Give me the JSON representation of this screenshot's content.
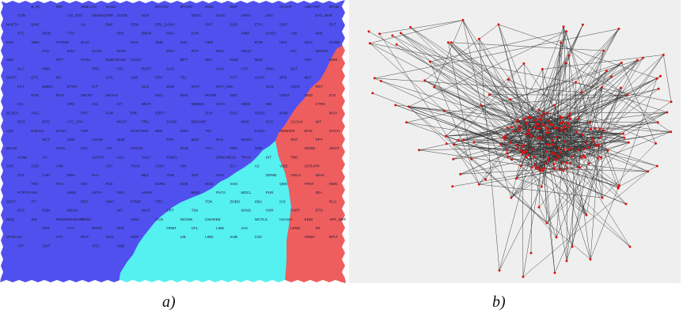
{
  "captions": {
    "a": "a)",
    "b": "b)"
  },
  "colors": {
    "region_blue": "#5050ee",
    "region_cyan": "#55f0f0",
    "region_red": "#ee5e5e",
    "cell_label": "#1a1a33",
    "graph_edge": "#333333",
    "graph_node": "#e01010",
    "graph_bg": "#efefef"
  },
  "som_labels": [
    "B_PL",
    "REF",
    "SWE LTC",
    "SAGE",
    "BITCNY",
    "BTCNY",
    "KEEI",
    "REP",
    "OTSAP",
    "ADK FEP",
    "BTHB",
    "CON",
    "LTC_ETC",
    "MONAGENP",
    "DOGE",
    "EOS",
    "GBTC",
    "SUIG",
    "XMTA",
    "ZKG",
    "ETC_BNP",
    "MAETA",
    "BHIC",
    "UA",
    "BNC",
    "ZEM",
    "ERL_DASH",
    "DNT",
    "SOS",
    "ETH",
    "DGP",
    "EKT",
    "XTC",
    "NEW",
    "TTD",
    "NPA",
    "BDHK",
    "NKS",
    "EVN",
    "XRM",
    "DASH",
    "LSK",
    "PAB",
    "KNC",
    "XMG",
    "STEEM",
    "ELIG",
    "MAS",
    "SNB",
    "SLE",
    "GDD",
    "BTM",
    "NEX",
    "NUO",
    "GAME",
    "FAX",
    "MSC",
    "EVNC",
    "MOM",
    "BIGT",
    "RCT",
    "EDU",
    "HOLD",
    "ICC",
    "WAVES",
    "SDE",
    "PPT",
    "PAGC",
    "BURCBASE",
    "CVGH",
    "BPT",
    "ZEC",
    "RMD",
    "NMS",
    "ANT",
    "SNM",
    "NLC",
    "NMC",
    "ZRX",
    "HTL",
    "RUFF",
    "GAS",
    "SAN",
    "CVC",
    "OMG",
    "BAT",
    "SHIFT",
    "ETC",
    "BS",
    "SYS",
    "SUB",
    "RPX",
    "TEL",
    "TCT",
    "AUTO",
    "BRK",
    "MLT",
    "FCT",
    "MIBEL",
    "DTMT",
    "ICT",
    "SLG",
    "EDN",
    "WTC",
    "DOT_GRL",
    "OCN",
    "LEDC",
    "RGT",
    "EOS",
    "ROS",
    "MICNT",
    "WAVAX",
    "EKO",
    "RMX",
    "POWR",
    "NGC",
    "CENT",
    "DMD",
    "ICN",
    "ICC",
    "XRG",
    "ZCL",
    "ICT",
    "BNAT",
    "BQNNN",
    "DATA",
    "SENC",
    "INK",
    "CTRC",
    "BLOCK",
    "TKG",
    "ERC",
    "FUN",
    "ERL",
    "EBPT",
    "ZCN",
    "EGC",
    "GDVS",
    "BSM",
    "BCH",
    "ZGG",
    "BTG",
    "LTC_CNY",
    "MOAT",
    "TRU",
    "SAND",
    "BOSAMT",
    "MMC",
    "SCC",
    "CLOAK",
    "INT",
    "LQC",
    "EMULS",
    "DASH",
    "CMT",
    "OAKTOKN",
    "BEE",
    "EOO",
    "TIO",
    "CASH",
    "NEBHOS",
    "BYM",
    "DACH",
    "MCT",
    "CDR",
    "LOOM",
    "QUB",
    "RPX",
    "BCD",
    "PLG",
    "MOGC",
    "SNT",
    "PPY",
    "BCHN",
    "CERL",
    "ETC",
    "VTA",
    "STRAN",
    "GNO",
    "TCH",
    "OPH",
    "SNR",
    "NORD",
    "SKGT",
    "AGMI",
    "CV",
    "AUTOC",
    "ADA",
    "SALT",
    "TDMG",
    "ZRBCNDAC",
    "TRAH",
    "IST",
    "TBG",
    "CMT",
    "OSC",
    "ARK",
    "VET",
    "TRAC",
    "COFI",
    "KIN",
    "ZLY",
    "AC",
    "VIBE",
    "SCRAPR",
    "GAT",
    "CHP",
    "NRN",
    "PLU",
    "BEZ",
    "VNB",
    "ZAP",
    "XVG",
    "ORME",
    "ORCA",
    "IMAX",
    "TNC",
    "POA",
    "OGI",
    "FDZ",
    "EDRC",
    "EOB",
    "NCB",
    "GXS",
    "QNK",
    "FRST",
    "MMC",
    "POPTCASH",
    "SWM",
    "ASTH",
    "SGG",
    "AHNE",
    "MOD",
    "PUTA",
    "MDCL",
    "PUR",
    "IDH",
    "SENT",
    "TIT",
    "REF",
    "SMH",
    "STBIP",
    "TRG",
    "TOK",
    "ZNBD",
    "XBA",
    "ICX",
    "RLC",
    "EPS",
    "RDN",
    "MEAN",
    "INT",
    "WIXT",
    "CRT",
    "TSK",
    "IGNIS",
    "HSR",
    "PART",
    "ETO",
    "REQ",
    "SIK",
    "PMUMPNVENTS",
    "FAIRC",
    "VISIL",
    "DCN",
    "NIGHM",
    "CMAREE",
    "WCTLS",
    "HCASH",
    "EEBI",
    "ART_MRFAB",
    "PNT",
    "GTT",
    "BXRR",
    "RFG",
    "ORBT",
    "CFL",
    "LINE",
    "JAS",
    "LEND",
    "MT",
    "MTHLHAI",
    "UTA",
    "MAX",
    "SGG",
    "SHIP",
    "LIB",
    "LIND",
    "SUB",
    "CSC",
    "USDN",
    "EPLT",
    "ATT",
    "ZDIT",
    "OTC",
    "SNB"
  ]
}
